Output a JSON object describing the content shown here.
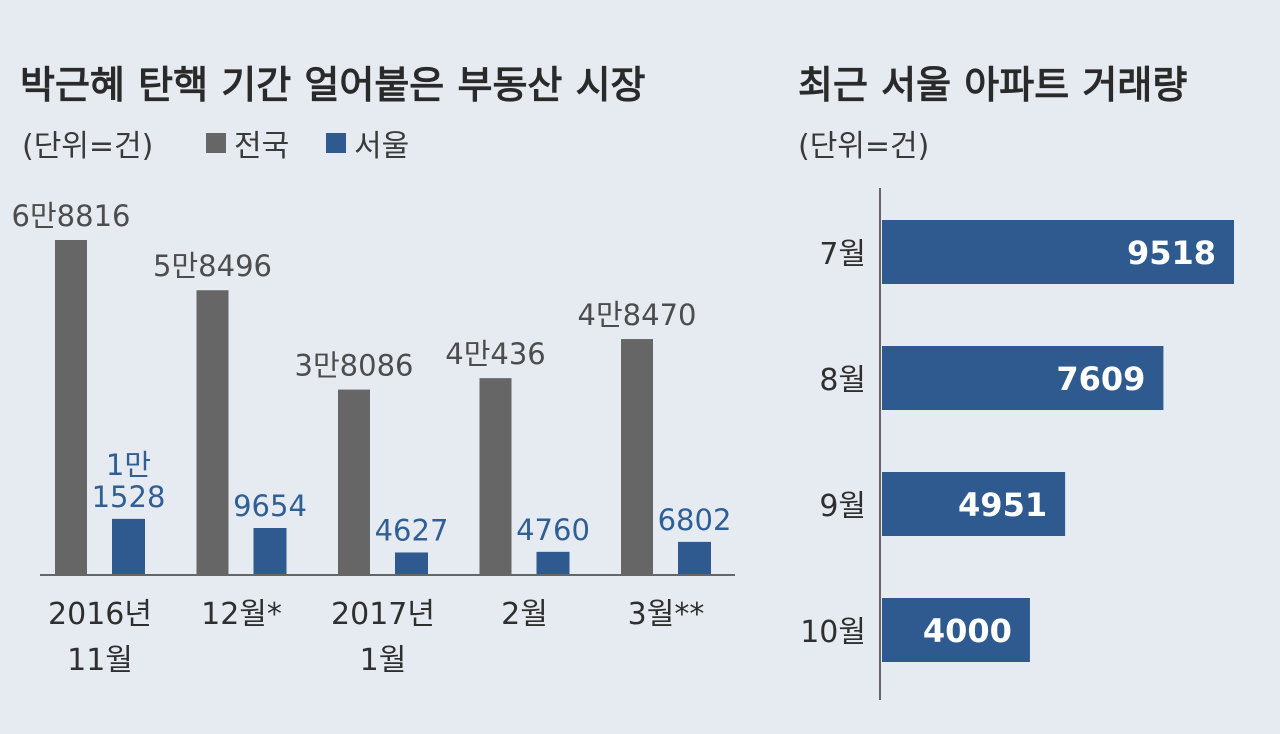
{
  "colors": {
    "national": "#666666",
    "seoul": "#2e5a90",
    "axis": "#666666",
    "background": "#e6ebf1"
  },
  "chart_data": [
    {
      "type": "bar",
      "title": "박근혜 탄핵 기간 얼어붙은 부동산 시장",
      "unit": "(단위=건)",
      "legend_position": "top-left",
      "categories": [
        [
          "2016년",
          "11월"
        ],
        [
          "12월*"
        ],
        [
          "2017년",
          "1월"
        ],
        [
          "2월"
        ],
        [
          "3월**"
        ]
      ],
      "series": [
        {
          "name": "전국",
          "values": [
            68816,
            58496,
            38086,
            40436,
            48470
          ],
          "labels": [
            [
              "6만8816"
            ],
            [
              "5만8496"
            ],
            [
              "3만8086"
            ],
            [
              "4만436"
            ],
            [
              "4만8470"
            ]
          ]
        },
        {
          "name": "서울",
          "values": [
            11528,
            9654,
            4627,
            4760,
            6802
          ],
          "labels": [
            [
              "1만",
              "1528"
            ],
            [
              "9654"
            ],
            [
              "4627"
            ],
            [
              "4760"
            ],
            [
              "6802"
            ]
          ]
        }
      ],
      "ylim": [
        0,
        70000
      ]
    },
    {
      "type": "bar",
      "orientation": "horizontal",
      "title": "최근 서울 아파트 거래량",
      "unit": "(단위=건)",
      "categories": [
        "7월",
        "8월",
        "9월",
        "10월"
      ],
      "values": [
        9518,
        7609,
        4951,
        4000
      ],
      "xlim": [
        0,
        9518
      ]
    }
  ]
}
